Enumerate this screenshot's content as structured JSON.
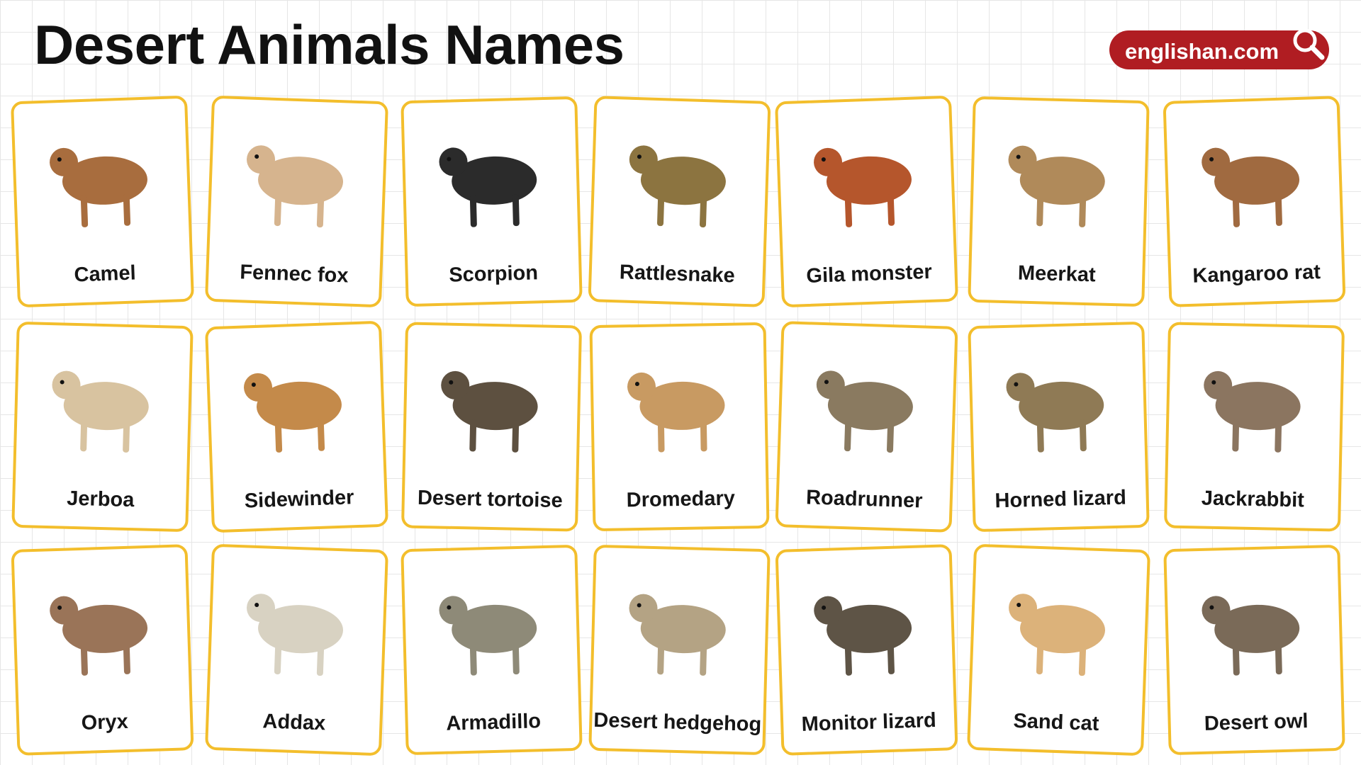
{
  "header": {
    "title": "Desert Animals Names",
    "brand": "englishan.com"
  },
  "cards": [
    "Camel",
    "Fennec fox",
    "Scorpion",
    "Rattlesnake",
    "Gila monster",
    "Meerkat",
    "Kangaroo rat",
    "Jerboa",
    "Sidewinder",
    "Desert tortoise",
    "Dromedary",
    "Roadrunner",
    "Horned lizard",
    "Jackrabbit",
    "Oryx",
    "Addax",
    "Armadillo",
    "Desert hedgehog",
    "Monitor lizard",
    "Sand cat",
    "Desert owl"
  ]
}
